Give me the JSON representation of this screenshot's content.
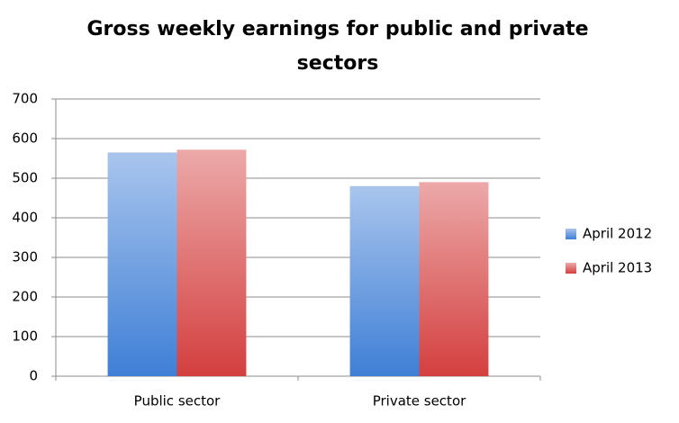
{
  "chart_data": {
    "type": "bar",
    "title": "Gross weekly earnings for public and private sectors",
    "categories": [
      "Public sector",
      "Private sector"
    ],
    "series": [
      {
        "name": "April 2012",
        "color": "#3f7fd6",
        "values": [
          565,
          480
        ]
      },
      {
        "name": "April 2013",
        "color": "#d43f3f",
        "values": [
          572,
          490
        ]
      }
    ],
    "ylim": [
      0,
      700
    ],
    "yticks": [
      0,
      100,
      200,
      300,
      400,
      500,
      600,
      700
    ],
    "grid": true,
    "legend": "right"
  }
}
